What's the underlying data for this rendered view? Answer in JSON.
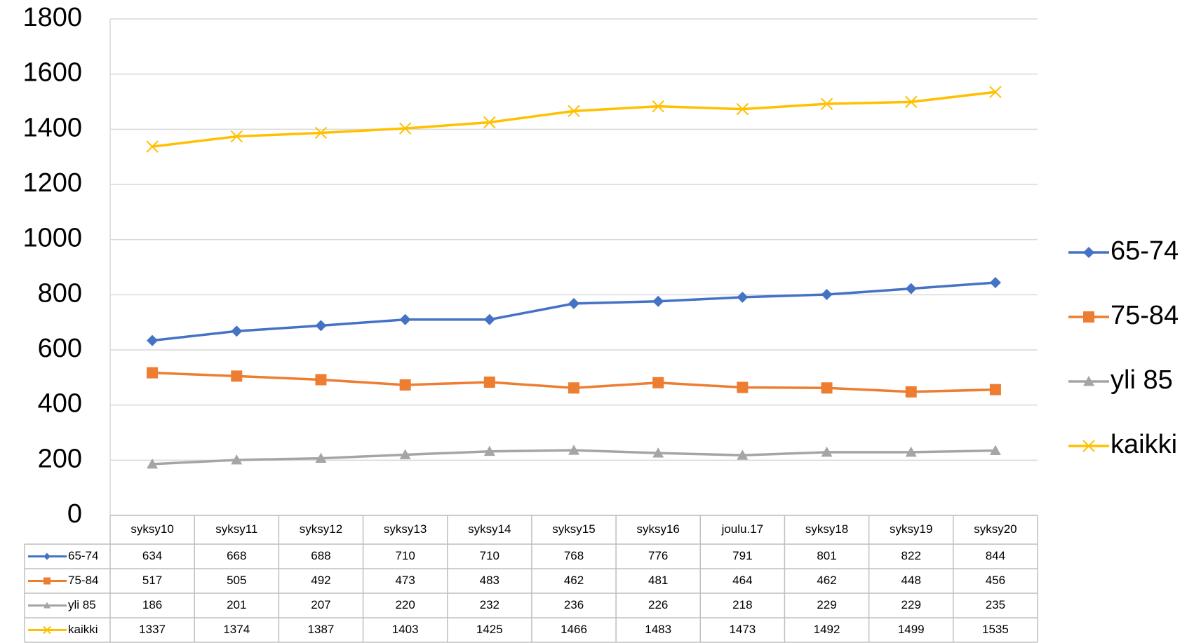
{
  "chart_data": {
    "type": "line",
    "categories": [
      "syksy10",
      "syksy11",
      "syksy12",
      "syksy13",
      "syksy14",
      "syksy15",
      "syksy16",
      "joulu.17",
      "syksy18",
      "syksy19",
      "syksy20"
    ],
    "series": [
      {
        "name": "65-74",
        "color": "#4472c4",
        "marker": "diamond",
        "values": [
          634,
          668,
          688,
          710,
          710,
          768,
          776,
          791,
          801,
          822,
          844
        ]
      },
      {
        "name": "75-84",
        "color": "#ed7d31",
        "marker": "square",
        "values": [
          517,
          505,
          492,
          473,
          483,
          462,
          481,
          464,
          462,
          448,
          456
        ]
      },
      {
        "name": "yli 85",
        "color": "#a5a5a5",
        "marker": "triangle",
        "values": [
          186,
          201,
          207,
          220,
          232,
          236,
          226,
          218,
          229,
          229,
          235
        ]
      },
      {
        "name": "kaikki",
        "color": "#ffc000",
        "marker": "x",
        "values": [
          1337,
          1374,
          1387,
          1403,
          1425,
          1466,
          1483,
          1473,
          1492,
          1499,
          1535
        ]
      }
    ],
    "ylim": [
      0,
      1800
    ],
    "yticks": [
      0,
      200,
      400,
      600,
      800,
      1000,
      1200,
      1400,
      1600,
      1800
    ],
    "grid": true,
    "legend": "right",
    "data_table": true
  }
}
